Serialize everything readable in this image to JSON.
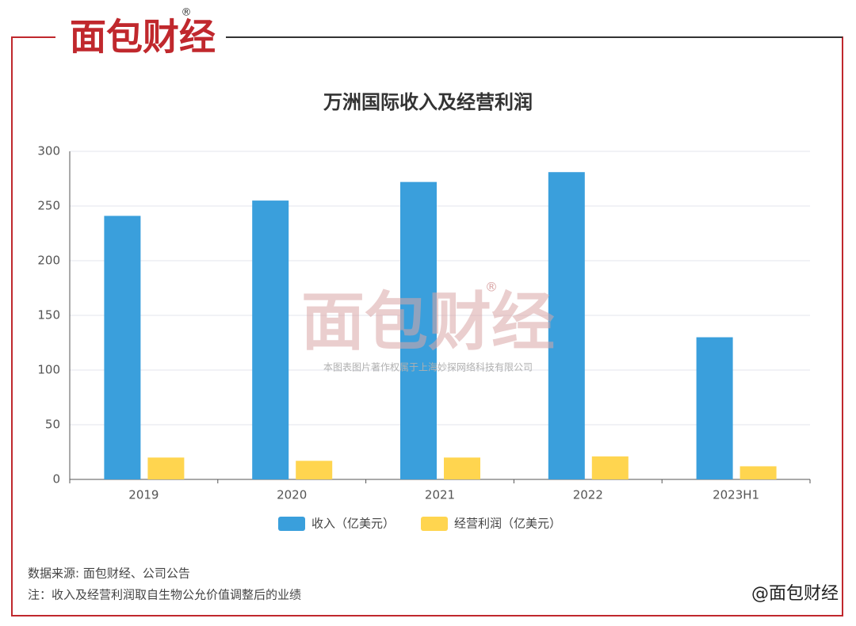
{
  "logo": {
    "text": "面包财经",
    "mark": "®"
  },
  "watermark": {
    "text": "面包财经",
    "mark": "®",
    "caption": "本图表图片著作权属于上海妙探网络科技有限公司"
  },
  "source": "数据来源: 面包财经、公司公告",
  "note": "注：收入及经营利润取自生物公允价值调整后的业绩",
  "footer": "@面包财经",
  "chart_data": {
    "type": "bar",
    "title": "万洲国际收入及经营利润",
    "categories": [
      "2019",
      "2020",
      "2021",
      "2022",
      "2023H1"
    ],
    "series": [
      {
        "name": "收入（亿美元）",
        "color": "#3a9fdc",
        "values": [
          241,
          255,
          272,
          281,
          130
        ]
      },
      {
        "name": "经营利润（亿美元）",
        "color": "#ffd54f",
        "values": [
          20,
          17,
          20,
          21,
          12
        ]
      }
    ],
    "ylim": [
      0,
      300
    ],
    "yticks": [
      0,
      50,
      100,
      150,
      200,
      250,
      300
    ],
    "grid": true,
    "legend": "bottom"
  }
}
